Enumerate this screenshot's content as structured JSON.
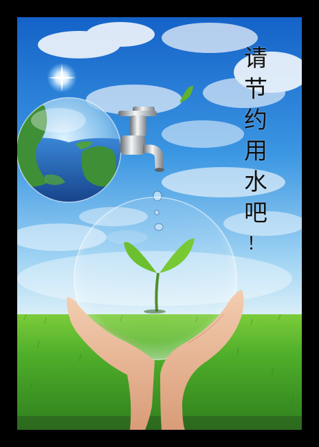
{
  "slogan": {
    "chars": [
      "请",
      "节",
      "约",
      "用",
      "水",
      "吧",
      "！"
    ]
  },
  "colors": {
    "frame": "#000000",
    "sky_top": "#1a6fd0",
    "sky_horizon": "#cfeaf6",
    "grass": "#3f9f25",
    "leaf": "#5fb22b",
    "ocean": "#2d6fc4",
    "land": "#3e8f36",
    "skin": "#e9b796",
    "text": "#111111"
  },
  "icons": [
    "sun-glint",
    "water-faucet",
    "earth-globe",
    "falling-leaf",
    "water-drops",
    "seedling",
    "glass-bubble",
    "cupped-hands"
  ]
}
